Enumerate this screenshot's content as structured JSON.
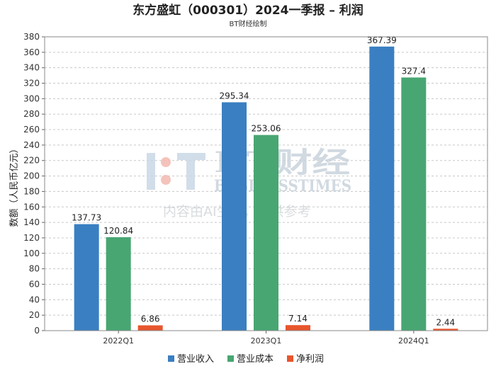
{
  "chart_data": {
    "type": "bar",
    "title": "东方盛虹（000301）2024一季报 – 利润",
    "subtitle": "BT财经绘制",
    "ylabel": "数额（人民币亿元）",
    "xlabel": "",
    "ylim": [
      0,
      380
    ],
    "ytick_step": 20,
    "grid": true,
    "legend_position": "bottom",
    "categories": [
      "2022Q1",
      "2023Q1",
      "2024Q1"
    ],
    "series": [
      {
        "name": "营业收入",
        "color": "#3a7fc1",
        "values": [
          137.73,
          295.34,
          367.39
        ],
        "labels": [
          "137.73",
          "295.34",
          "367.39"
        ]
      },
      {
        "name": "营业成本",
        "color": "#48a672",
        "values": [
          120.84,
          253.06,
          327.4
        ],
        "labels": [
          "120.84",
          "253.06",
          "327.4"
        ]
      },
      {
        "name": "净利润",
        "color": "#e8552d",
        "values": [
          6.86,
          7.14,
          2.44
        ],
        "labels": [
          "6.86",
          "7.14",
          "2.44"
        ]
      }
    ]
  },
  "watermark": {
    "brand": "BT财经",
    "brand_en": "BUSINESSTIMES",
    "notice": "内容由AI生成，仅供参考"
  }
}
